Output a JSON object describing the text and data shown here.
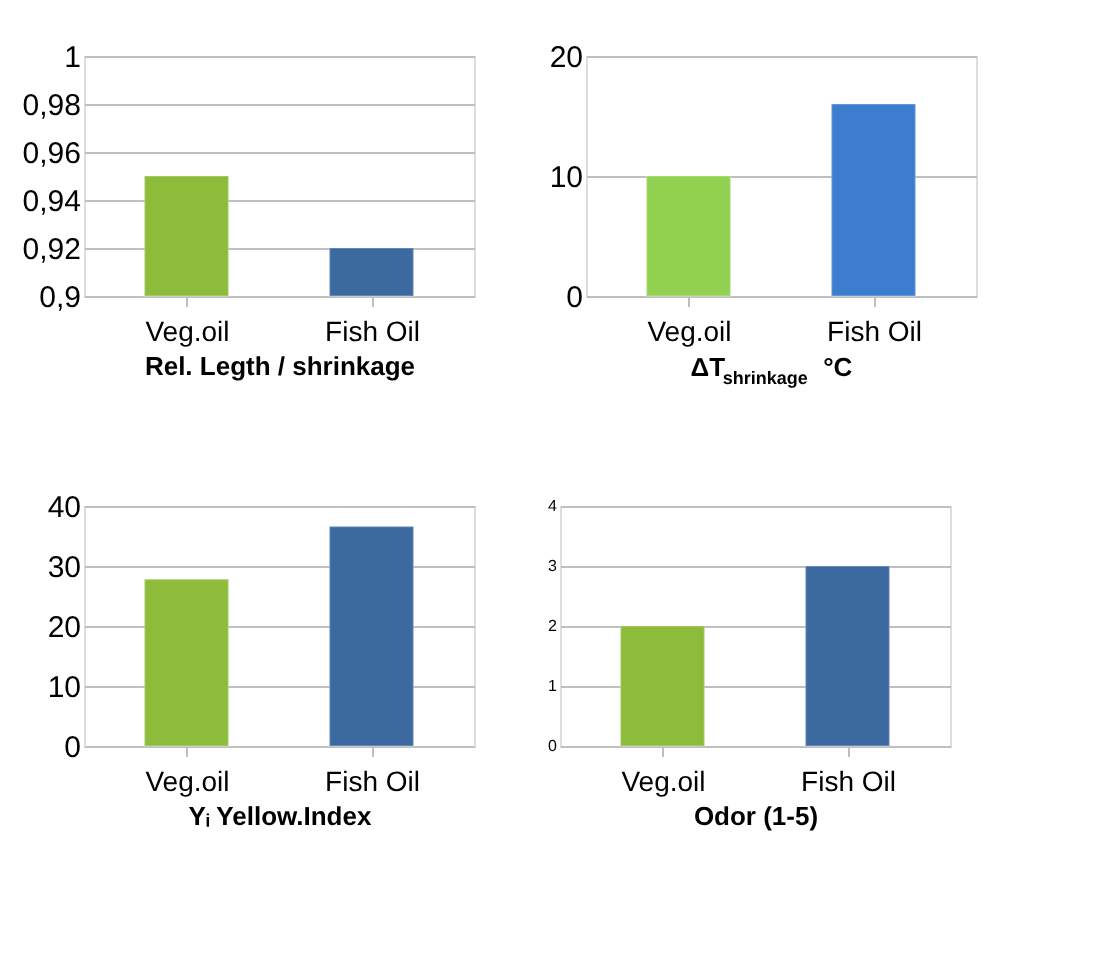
{
  "chart_data": [
    {
      "type": "bar",
      "categories": [
        "Veg.oil",
        "Fish Oil"
      ],
      "values": [
        0.95,
        0.92
      ],
      "colors": [
        "#8dbb3a",
        "#3b69a0"
      ],
      "xlabel": "Rel. Legth / shrinkage",
      "ylim": [
        0.9,
        1
      ],
      "yticks": [
        {
          "value": 0.9,
          "label": "0,9"
        },
        {
          "value": 0.92,
          "label": "0,92"
        },
        {
          "value": 0.94,
          "label": "0,94"
        },
        {
          "value": 0.96,
          "label": "0,96"
        },
        {
          "value": 0.98,
          "label": "0,98"
        },
        1
      ],
      "grid": "y"
    },
    {
      "type": "bar",
      "categories": [
        "Veg.oil",
        "Fish Oil"
      ],
      "values": [
        10,
        16
      ],
      "colors": [
        "#92d050",
        "#3c7dd0"
      ],
      "xlabel": "ΔT$_{shrinkage}$ °C",
      "ylim": [
        0,
        20
      ],
      "yticks": [
        0,
        10,
        20
      ],
      "grid": "y"
    },
    {
      "type": "bar",
      "categories": [
        "Veg.oil",
        "Fish Oil"
      ],
      "values": [
        27.8,
        36.6
      ],
      "colors": [
        "#8dbb3a",
        "#3b69a0"
      ],
      "xlabel": "Yᵢ Yellow.Index",
      "ylim": [
        0,
        40
      ],
      "yticks": [
        0,
        10,
        20,
        30,
        40
      ],
      "grid": "y"
    },
    {
      "type": "bar",
      "categories": [
        "Veg.oil",
        "Fish Oil"
      ],
      "values": [
        2,
        3
      ],
      "colors": [
        "#8dbb3a",
        "#3b69a0"
      ],
      "xlabel": "Odor (1-5)",
      "ylim": [
        0,
        4
      ],
      "yticks": [
        0,
        1,
        2,
        3,
        4
      ],
      "grid": "y"
    }
  ]
}
